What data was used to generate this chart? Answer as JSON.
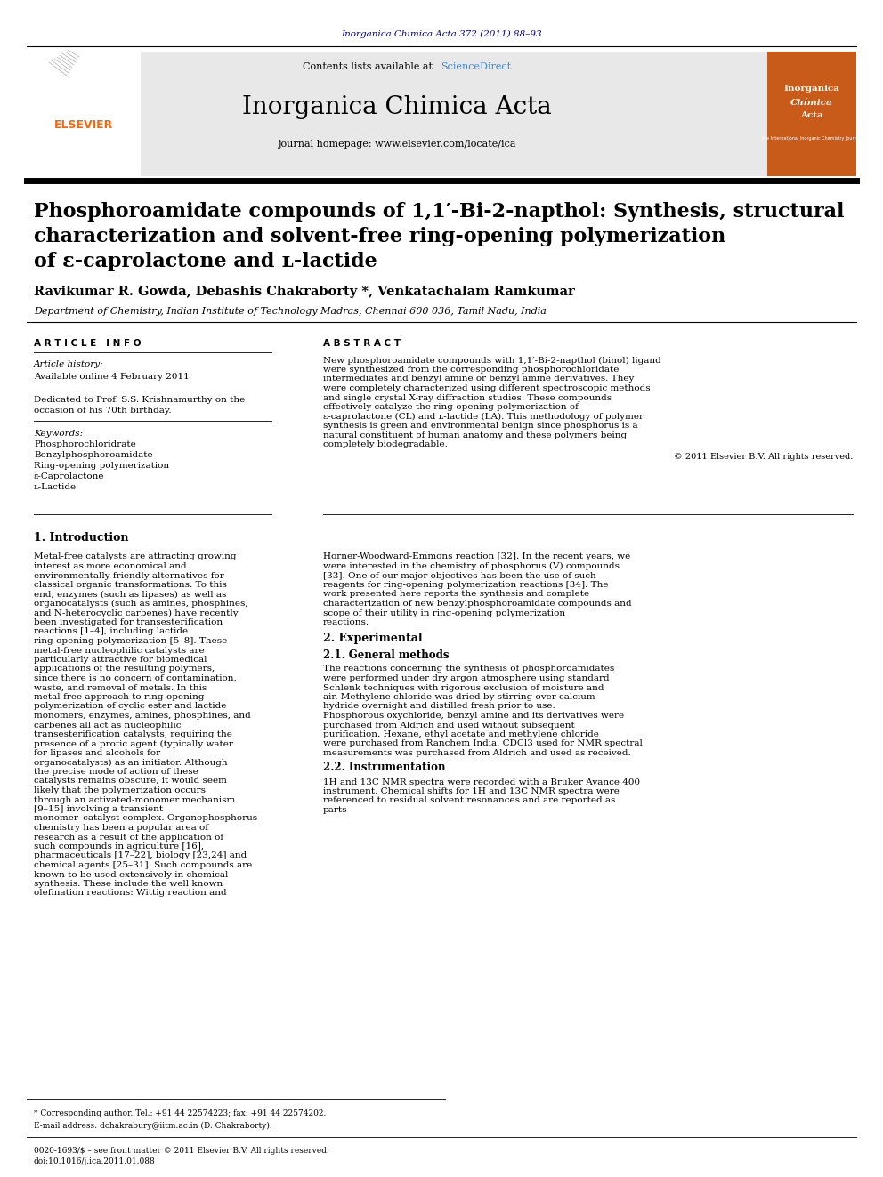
{
  "page_bg": "#ffffff",
  "top_cite": "Inorganica Chimica Acta 372 (2011) 88–93",
  "top_cite_color": "#000080",
  "header_bg": "#e8e8e8",
  "contents_line": "Contents lists available at ScienceDirect",
  "sciencedirect_color": "#4488cc",
  "journal_name": "Inorganica Chimica Acta",
  "journal_homepage": "journal homepage: www.elsevier.com/locate/ica",
  "article_title_line1": "Phosphoroamidate compounds of 1,1′-Bi-2-napthol: Synthesis, structural",
  "article_title_line2": "characterization and solvent-free ring-opening polymerization",
  "article_title_line3": "of ε-caprolactone and ʟ-lactide",
  "authors": "Ravikumar R. Gowda, Debashis Chakraborty *, Venkatachalam Ramkumar",
  "affiliation": "Department of Chemistry, Indian Institute of Technology Madras, Chennai 600 036, Tamil Nadu, India",
  "section_article_info": "A R T I C L E   I N F O",
  "section_abstract": "A B S T R A C T",
  "article_history_label": "Article history:",
  "available_online": "Available online 4 February 2011",
  "dedicated_line1": "Dedicated to Prof. S.S. Krishnamurthy on the",
  "dedicated_line2": "occasion of his 70th birthday.",
  "keywords_label": "Keywords:",
  "keywords": [
    "Phosphorochloridrate",
    "Benzylphosphoroamidate",
    "Ring-opening polymerization",
    "ε-Caprolactone",
    "ʟ-Lactide"
  ],
  "abstract_text": "New phosphoroamidate compounds with 1,1′-Bi-2-napthol (binol) ligand were synthesized from the corresponding phosphorochloridate intermediates and benzyl amine or benzyl amine derivatives. They were completely characterized using different spectroscopic methods and single crystal X-ray diffraction studies. These compounds effectively catalyze the ring-opening polymerization of ε-caprolactone (CL) and ʟ-lactide (LA). This methodology of polymer synthesis is green and environmental benign since phosphorus is a natural constituent of human anatomy and these polymers being completely biodegradable.",
  "copyright": "© 2011 Elsevier B.V. All rights reserved.",
  "section1_title": "1. Introduction",
  "intro_text": "    Metal-free catalysts are attracting growing interest as more economical and environmentally friendly alternatives for classical organic transformations. To this end, enzymes (such as lipases) as well as organocatalysts (such as amines, phosphines, and N-heterocyclic carbenes) have recently been investigated for transesterification reactions [1–4], including lactide ring-opening polymerization [5–8]. These metal-free nucleophilic catalysts are particularly attractive for biomedical applications of the resulting polymers, since there is no concern of contamination, waste, and removal of metals. In this metal-free approach to ring-opening polymerization of cyclic ester and lactide monomers, enzymes, amines, phosphines, and carbenes all act as nucleophilic transesterification catalysts, requiring the presence of a protic agent (typically water for lipases and alcohols for organocatalysts) as an initiator. Although the precise mode of action of these catalysts remains obscure, it would seem likely that the polymerization occurs through an activated-monomer mechanism [9–15] involving a transient monomer–catalyst complex. Organophosphorus chemistry has been a popular area of research as a result of the application of such compounds in agriculture [16], pharmaceuticals [17–22], biology [23,24] and chemical agents [25–31]. Such compounds are known to be used extensively in chemical synthesis. These include the well known olefination reactions: Wittig reaction and",
  "right_col_intro": "Horner-Woodward-Emmons reaction [32]. In the recent years, we were interested in the chemistry of phosphorus (V) compounds [33]. One of our major objectives has been the use of such reagents for ring-opening polymerization reactions [34]. The work presented here reports the synthesis and complete characterization of new benzylphosphoroamidate compounds and scope of their utility in ring-opening polymerization reactions.",
  "section2_title": "2. Experimental",
  "section21_title": "2.1. General methods",
  "general_methods_text": "    The reactions concerning the synthesis of phosphoroamidates were performed under dry argon atmosphere using standard Schlenk techniques with rigorous exclusion of moisture and air. Methylene chloride was dried by stirring over calcium hydride overnight and distilled fresh prior to use. Phosphorous oxychloride, benzyl amine and its derivatives were purchased from Aldrich and used without subsequent purification. Hexane, ethyl acetate and methylene chloride were purchased from Ranchem India. CDCl3 used for NMR spectral measurements was purchased from Aldrich and used as received.",
  "section22_title": "2.2. Instrumentation",
  "instrumentation_text": "    1H and 13C NMR spectra were recorded with a Bruker Avance 400 instrument. Chemical shifts for 1H and 13C NMR spectra were referenced to residual solvent resonances and are reported as parts",
  "footnote_star": "* Corresponding author. Tel.: +91 44 22574223; fax: +91 44 22574202.",
  "footnote_email": "E-mail address: dchakrabury@iitm.ac.in (D. Chakraborty).",
  "footer_issn": "0020-1693/$ – see front matter © 2011 Elsevier B.V. All rights reserved.",
  "footer_doi": "doi:10.1016/j.ica.2011.01.088"
}
